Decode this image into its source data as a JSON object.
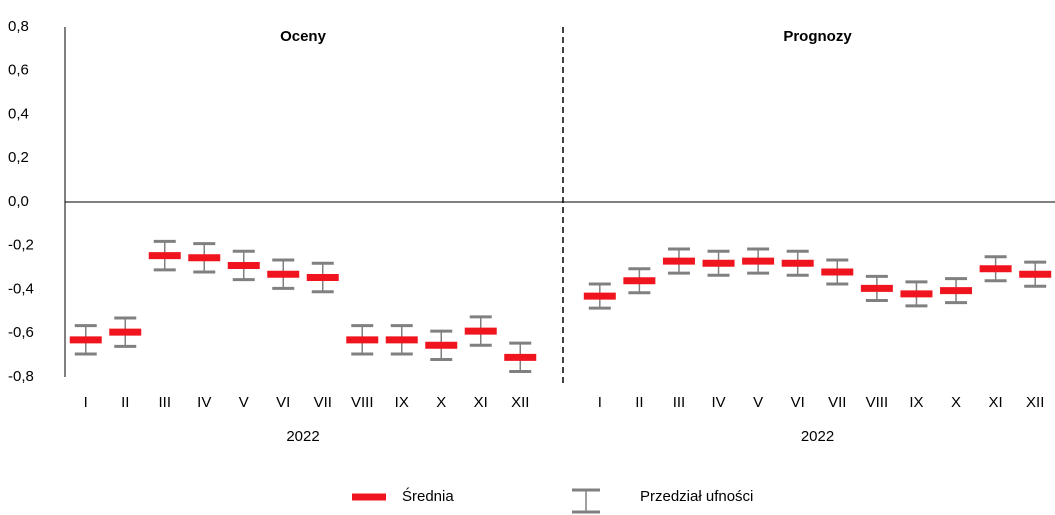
{
  "chart_data": {
    "type": "errorbar",
    "ylim": [
      -0.8,
      0.8
    ],
    "yticks": [
      {
        "value": 0.8,
        "label": "0,8"
      },
      {
        "value": 0.6,
        "label": "0,6"
      },
      {
        "value": 0.4,
        "label": "0,4"
      },
      {
        "value": 0.2,
        "label": "0,2"
      },
      {
        "value": 0,
        "label": "0,0"
      },
      {
        "value": -0.2,
        "label": "-0,2"
      },
      {
        "value": -0.4,
        "label": "-0,4"
      },
      {
        "value": -0.6,
        "label": "-0,6"
      },
      {
        "value": -0.8,
        "label": "-0,8"
      }
    ],
    "mean_name": "Średnia",
    "mean_color": "#f0141e",
    "interval_name": "Przedział ufności",
    "interval_color": "#808080",
    "panels": [
      {
        "title": "Oceny",
        "x_label": "2022",
        "categories": [
          "I",
          "II",
          "III",
          "IV",
          "V",
          "VI",
          "VII",
          "VIII",
          "IX",
          "X",
          "XI",
          "XII"
        ],
        "mean": [
          -0.63,
          -0.595,
          -0.245,
          -0.255,
          -0.29,
          -0.33,
          -0.345,
          -0.63,
          -0.63,
          -0.655,
          -0.59,
          -0.71
        ],
        "low": [
          -0.695,
          -0.66,
          -0.31,
          -0.32,
          -0.355,
          -0.395,
          -0.41,
          -0.695,
          -0.695,
          -0.72,
          -0.655,
          -0.775
        ],
        "high": [
          -0.565,
          -0.53,
          -0.18,
          -0.19,
          -0.225,
          -0.265,
          -0.28,
          -0.565,
          -0.565,
          -0.59,
          -0.525,
          -0.645
        ]
      },
      {
        "title": "Prognozy",
        "x_label": "2022",
        "categories": [
          "I",
          "II",
          "III",
          "IV",
          "V",
          "VI",
          "VII",
          "VIII",
          "IX",
          "X",
          "XI",
          "XII"
        ],
        "mean": [
          -0.43,
          -0.36,
          -0.27,
          -0.28,
          -0.27,
          -0.28,
          -0.32,
          -0.395,
          -0.42,
          -0.405,
          -0.305,
          -0.33
        ],
        "low": [
          -0.485,
          -0.415,
          -0.325,
          -0.335,
          -0.325,
          -0.335,
          -0.375,
          -0.45,
          -0.475,
          -0.46,
          -0.36,
          -0.385
        ],
        "high": [
          -0.375,
          -0.305,
          -0.215,
          -0.225,
          -0.215,
          -0.225,
          -0.265,
          -0.34,
          -0.365,
          -0.35,
          -0.25,
          -0.275
        ]
      }
    ]
  }
}
